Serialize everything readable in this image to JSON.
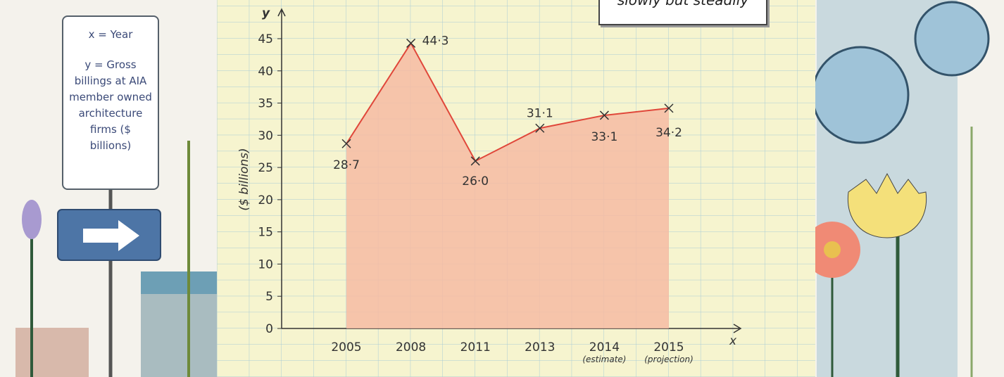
{
  "chart_data": {
    "type": "line",
    "categories": [
      "2005",
      "2008",
      "2011",
      "2013",
      "2014",
      "2015"
    ],
    "category_notes": [
      null,
      null,
      null,
      null,
      "(estimate)",
      "(projection)"
    ],
    "series": [
      {
        "color": "#e0473a",
        "fill": "#f6bba3",
        "values": [
          28.7,
          44.3,
          26.0,
          31.1,
          33.1,
          34.2
        ],
        "value_labels": [
          "28·7",
          "44·3",
          "26·0",
          "31·1",
          "33·1",
          "34·2"
        ]
      }
    ],
    "ylim": [
      0,
      45
    ],
    "yticks": [
      0,
      5,
      10,
      15,
      20,
      25,
      30,
      35,
      40,
      45
    ],
    "x_label": "x",
    "y_label": "y",
    "y_axis_title": "($ billions)",
    "note": "slowly but steadily",
    "sign": {
      "x_definition": "x = Year",
      "y_definition": "y = Gross billings at AIA member owned architecture firms ($ billions)"
    }
  }
}
